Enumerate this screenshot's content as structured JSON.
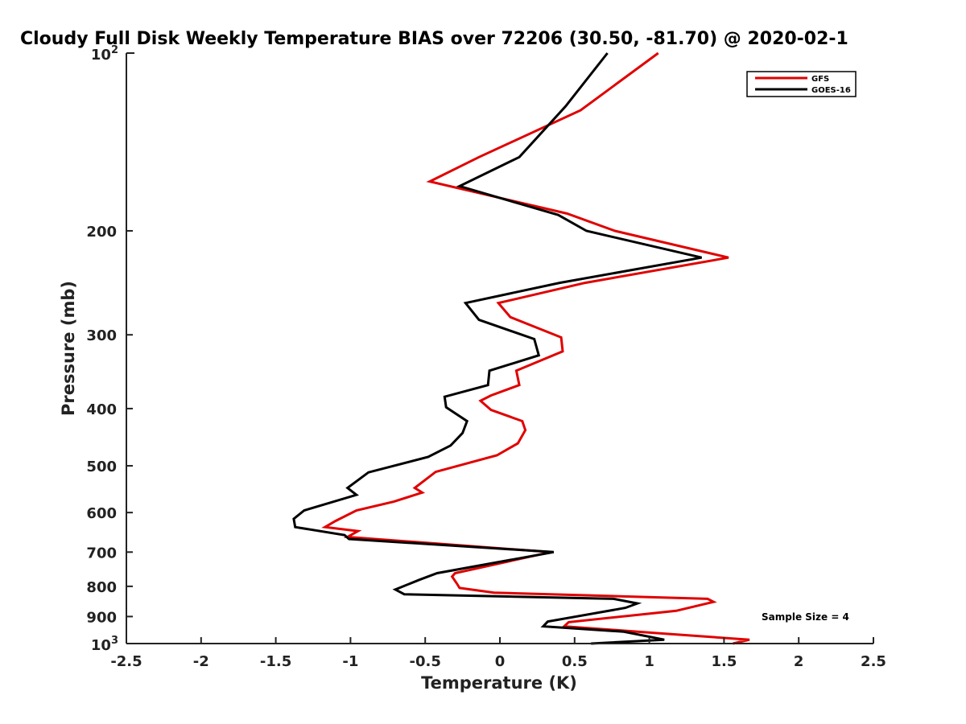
{
  "chart_data": {
    "type": "line",
    "title": "Cloudy Full Disk Weekly Temperature BIAS over 72206 (30.50, -81.70) @ 2020-02-1",
    "xlabel": "Temperature (K)",
    "ylabel": "Pressure (mb)",
    "xlim": [
      -2.5,
      2.5
    ],
    "ylim": [
      100,
      1000
    ],
    "y_scale": "log",
    "y_reversed": true,
    "x_ticks": [
      -2.5,
      -2,
      -1.5,
      -1,
      -0.5,
      0,
      0.5,
      1,
      1.5,
      2,
      2.5
    ],
    "x_tick_labels": [
      "-2.5",
      "-2",
      "-1.5",
      "-1",
      "-0.5",
      "0",
      "0.5",
      "1",
      "1.5",
      "2",
      "2.5"
    ],
    "y_ticks": [
      200,
      300,
      400,
      500,
      600,
      700,
      800,
      900
    ],
    "y_tick_labels": [
      "200",
      "300",
      "400",
      "500",
      "600",
      "700",
      "800",
      "900"
    ],
    "y_decade_ticks": [
      {
        "value": 100,
        "base": "10",
        "exp": "2"
      },
      {
        "value": 1000,
        "base": "10",
        "exp": "3"
      }
    ],
    "grid": false,
    "legend_position": "top-right",
    "annotation": "Sample Size = 4",
    "series": [
      {
        "name": "GFS",
        "color": "#e00000",
        "points": [
          {
            "t": 1.06,
            "p": 100
          },
          {
            "t": 0.54,
            "p": 125
          },
          {
            "t": -0.14,
            "p": 150
          },
          {
            "t": -0.47,
            "p": 165
          },
          {
            "t": 0.45,
            "p": 187
          },
          {
            "t": 0.77,
            "p": 200
          },
          {
            "t": 1.53,
            "p": 222
          },
          {
            "t": 0.57,
            "p": 245
          },
          {
            "t": -0.01,
            "p": 265
          },
          {
            "t": 0.07,
            "p": 280
          },
          {
            "t": 0.41,
            "p": 303
          },
          {
            "t": 0.42,
            "p": 320
          },
          {
            "t": 0.11,
            "p": 345
          },
          {
            "t": 0.13,
            "p": 365
          },
          {
            "t": -0.06,
            "p": 380
          },
          {
            "t": -0.13,
            "p": 388
          },
          {
            "t": -0.06,
            "p": 402
          },
          {
            "t": 0.15,
            "p": 420
          },
          {
            "t": 0.17,
            "p": 435
          },
          {
            "t": 0.12,
            "p": 458
          },
          {
            "t": -0.02,
            "p": 480
          },
          {
            "t": -0.43,
            "p": 512
          },
          {
            "t": -0.57,
            "p": 545
          },
          {
            "t": -0.52,
            "p": 555
          },
          {
            "t": -0.71,
            "p": 575
          },
          {
            "t": -0.96,
            "p": 595
          },
          {
            "t": -1.1,
            "p": 620
          },
          {
            "t": -1.17,
            "p": 635
          },
          {
            "t": -0.95,
            "p": 645
          },
          {
            "t": -1.02,
            "p": 660
          },
          {
            "t": 0.34,
            "p": 700
          },
          {
            "t": -0.3,
            "p": 760
          },
          {
            "t": -0.32,
            "p": 770
          },
          {
            "t": -0.29,
            "p": 790
          },
          {
            "t": -0.27,
            "p": 805
          },
          {
            "t": -0.04,
            "p": 820
          },
          {
            "t": 1.39,
            "p": 840
          },
          {
            "t": 1.43,
            "p": 850
          },
          {
            "t": 1.18,
            "p": 880
          },
          {
            "t": 0.46,
            "p": 920
          },
          {
            "t": 0.43,
            "p": 935
          },
          {
            "t": 1.05,
            "p": 960
          },
          {
            "t": 1.67,
            "p": 985
          },
          {
            "t": 1.56,
            "p": 1000
          }
        ]
      },
      {
        "name": "GOES-16",
        "color": "#000000",
        "points": [
          {
            "t": 0.72,
            "p": 100
          },
          {
            "t": 0.44,
            "p": 123
          },
          {
            "t": 0.13,
            "p": 150
          },
          {
            "t": -0.27,
            "p": 168
          },
          {
            "t": 0.39,
            "p": 188
          },
          {
            "t": 0.58,
            "p": 200
          },
          {
            "t": 1.35,
            "p": 222
          },
          {
            "t": 0.4,
            "p": 245
          },
          {
            "t": -0.23,
            "p": 265
          },
          {
            "t": -0.14,
            "p": 283
          },
          {
            "t": 0.23,
            "p": 305
          },
          {
            "t": 0.26,
            "p": 325
          },
          {
            "t": -0.07,
            "p": 345
          },
          {
            "t": -0.08,
            "p": 365
          },
          {
            "t": -0.37,
            "p": 382
          },
          {
            "t": -0.36,
            "p": 398
          },
          {
            "t": -0.22,
            "p": 420
          },
          {
            "t": -0.25,
            "p": 440
          },
          {
            "t": -0.33,
            "p": 462
          },
          {
            "t": -0.48,
            "p": 483
          },
          {
            "t": -0.88,
            "p": 513
          },
          {
            "t": -1.02,
            "p": 545
          },
          {
            "t": -0.96,
            "p": 560
          },
          {
            "t": -1.31,
            "p": 595
          },
          {
            "t": -1.38,
            "p": 615
          },
          {
            "t": -1.37,
            "p": 635
          },
          {
            "t": -1.04,
            "p": 655
          },
          {
            "t": -1.01,
            "p": 665
          },
          {
            "t": 0.36,
            "p": 700
          },
          {
            "t": -0.42,
            "p": 760
          },
          {
            "t": -0.54,
            "p": 780
          },
          {
            "t": -0.7,
            "p": 810
          },
          {
            "t": -0.64,
            "p": 825
          },
          {
            "t": 0.76,
            "p": 840
          },
          {
            "t": 0.92,
            "p": 855
          },
          {
            "t": 0.84,
            "p": 870
          },
          {
            "t": 0.32,
            "p": 918
          },
          {
            "t": 0.29,
            "p": 935
          },
          {
            "t": 0.83,
            "p": 955
          },
          {
            "t": 1.1,
            "p": 985
          },
          {
            "t": 0.61,
            "p": 1000
          }
        ]
      }
    ]
  }
}
